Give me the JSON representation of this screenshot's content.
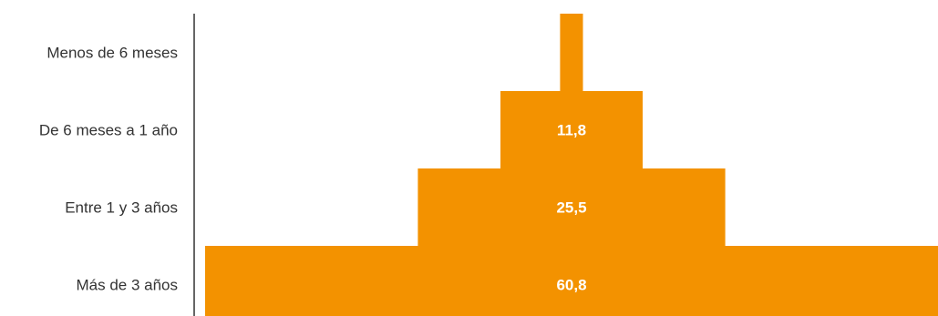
{
  "chart_data": {
    "type": "bar",
    "orientation": "horizontal-centered",
    "categories": [
      "Menos de 6 meses",
      "De 6 meses a 1 año",
      "Entre 1 y 3 años",
      "Más de 3 años"
    ],
    "values": [
      1.9,
      11.8,
      25.5,
      60.8
    ],
    "value_labels": [
      "",
      "11,8",
      "25,5",
      "60,8"
    ],
    "bar_color": "#F39200",
    "label_color": "#333333",
    "value_label_color": "#FFFFFF",
    "grid": false,
    "legend": "none"
  }
}
